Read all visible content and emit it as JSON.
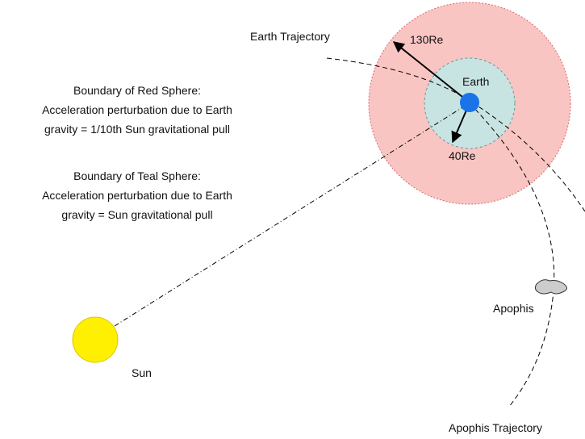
{
  "labels": {
    "earth_trajectory": "Earth Trajectory",
    "red_radius": "130Re",
    "earth": "Earth",
    "teal_radius": "40Re",
    "red_boundary": [
      "Boundary of Red Sphere:",
      "Acceleration perturbation due to Earth",
      "gravity  = 1/10th Sun gravitational pull"
    ],
    "teal_boundary": [
      "Boundary of Teal Sphere:",
      "Acceleration perturbation due to Earth",
      "gravity  = Sun gravitational pull"
    ],
    "apophis": "Apophis",
    "sun": "Sun",
    "apophis_trajectory": "Apophis Trajectory"
  }
}
